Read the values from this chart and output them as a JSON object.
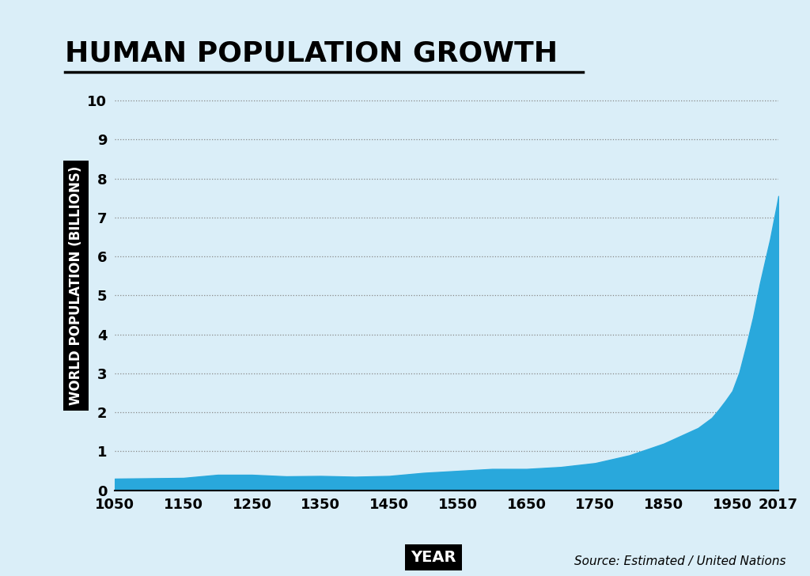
{
  "title": "HUMAN POPULATION GROWTH",
  "xlabel": "YEAR",
  "ylabel": "WORLD POPULATION (BILLIONS)",
  "background_color": "#daeef8",
  "fill_color": "#29a8dc",
  "line_color": "#29a8dc",
  "years": [
    1050,
    1100,
    1150,
    1200,
    1250,
    1300,
    1350,
    1400,
    1450,
    1500,
    1550,
    1600,
    1650,
    1700,
    1750,
    1800,
    1850,
    1900,
    1920,
    1930,
    1940,
    1950,
    1960,
    1970,
    1980,
    1990,
    2000,
    2005,
    2010,
    2015,
    2017
  ],
  "population": [
    0.3,
    0.31,
    0.32,
    0.4,
    0.4,
    0.36,
    0.37,
    0.35,
    0.37,
    0.45,
    0.5,
    0.55,
    0.55,
    0.6,
    0.7,
    0.9,
    1.2,
    1.6,
    1.86,
    2.07,
    2.3,
    2.55,
    3.02,
    3.7,
    4.43,
    5.3,
    6.07,
    6.45,
    6.9,
    7.35,
    7.55
  ],
  "xlim": [
    1050,
    2017
  ],
  "ylim": [
    0,
    10.5
  ],
  "yticks": [
    0,
    1,
    2,
    3,
    4,
    5,
    6,
    7,
    8,
    9,
    10
  ],
  "xticks": [
    1050,
    1150,
    1250,
    1350,
    1450,
    1550,
    1650,
    1750,
    1850,
    1950,
    2017
  ],
  "source_text": "Source: Estimated / United Nations",
  "title_fontsize": 26,
  "axis_label_fontsize": 12,
  "tick_fontsize": 13,
  "source_fontsize": 11
}
